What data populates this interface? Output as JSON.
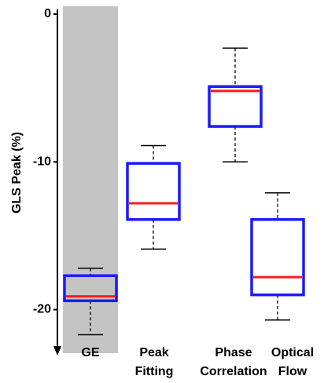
{
  "chart_data": {
    "type": "box",
    "y_label": "GLS Peak (%)",
    "categories": [
      "GE",
      "Peak Fitting",
      "Phase Correlation",
      "Optical Flow"
    ],
    "whisker_high": [
      -17.2,
      -8.9,
      -2.3,
      -12.1
    ],
    "q3": [
      -17.7,
      -10.1,
      -4.9,
      -13.9
    ],
    "median": [
      -19.1,
      -12.8,
      -5.2,
      -17.8
    ],
    "q1": [
      -19.4,
      -13.9,
      -7.6,
      -19.0
    ],
    "whisker_low": [
      -21.7,
      -15.9,
      -10.0,
      -20.7
    ],
    "box_color": "#1a1aff",
    "median_color": "#ff1a1a",
    "highlight_index": 0,
    "highlight_color": "#c4c4c4",
    "ylim": [
      -23,
      0
    ],
    "yticks": [
      0,
      -10,
      -20
    ]
  }
}
